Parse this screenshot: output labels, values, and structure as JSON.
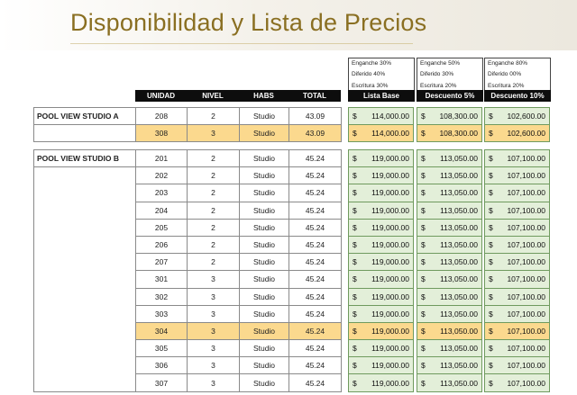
{
  "title": "Disponibilidad y Lista de Precios",
  "schemes": [
    {
      "lines": [
        "Enganche 30%",
        "Diferido 40%",
        "Escritura 30%"
      ],
      "header": "Lista Base"
    },
    {
      "lines": [
        "Enganche 50%",
        "Diferido 30%",
        "Escritura 20%"
      ],
      "header": "Descuento 5%"
    },
    {
      "lines": [
        "Enganche 80%",
        "Diferido 00%",
        "Escritura 20%"
      ],
      "header": "Descuento 10%"
    }
  ],
  "columns": [
    "UNIDAD",
    "NIVEL",
    "HABS",
    "TOTAL"
  ],
  "currency": "$",
  "colors": {
    "highlight": "#fbd98e",
    "price_cell": "#e3efd9",
    "title": "#8a6f22",
    "header_bg": "#0d0d0d"
  },
  "groups": [
    {
      "name": "POOL VIEW STUDIO A",
      "rows": [
        {
          "unidad": "208",
          "nivel": "2",
          "habs": "Studio",
          "total": "43.09",
          "prices": [
            "114,000.00",
            "108,300.00",
            "102,600.00"
          ],
          "highlight": false
        },
        {
          "unidad": "308",
          "nivel": "3",
          "habs": "Studio",
          "total": "43.09",
          "prices": [
            "114,000.00",
            "108,300.00",
            "102,600.00"
          ],
          "highlight": true
        }
      ]
    },
    {
      "name": "POOL VIEW STUDIO B",
      "rows": [
        {
          "unidad": "201",
          "nivel": "2",
          "habs": "Studio",
          "total": "45.24",
          "prices": [
            "119,000.00",
            "113,050.00",
            "107,100.00"
          ],
          "highlight": false
        },
        {
          "unidad": "202",
          "nivel": "2",
          "habs": "Studio",
          "total": "45.24",
          "prices": [
            "119,000.00",
            "113,050.00",
            "107,100.00"
          ],
          "highlight": false
        },
        {
          "unidad": "203",
          "nivel": "2",
          "habs": "Studio",
          "total": "45.24",
          "prices": [
            "119,000.00",
            "113,050.00",
            "107,100.00"
          ],
          "highlight": false
        },
        {
          "unidad": "204",
          "nivel": "2",
          "habs": "Studio",
          "total": "45.24",
          "prices": [
            "119,000.00",
            "113,050.00",
            "107,100.00"
          ],
          "highlight": false
        },
        {
          "unidad": "205",
          "nivel": "2",
          "habs": "Studio",
          "total": "45.24",
          "prices": [
            "119,000.00",
            "113,050.00",
            "107,100.00"
          ],
          "highlight": false
        },
        {
          "unidad": "206",
          "nivel": "2",
          "habs": "Studio",
          "total": "45.24",
          "prices": [
            "119,000.00",
            "113,050.00",
            "107,100.00"
          ],
          "highlight": false
        },
        {
          "unidad": "207",
          "nivel": "2",
          "habs": "Studio",
          "total": "45.24",
          "prices": [
            "119,000.00",
            "113,050.00",
            "107,100.00"
          ],
          "highlight": false
        },
        {
          "unidad": "301",
          "nivel": "3",
          "habs": "Studio",
          "total": "45.24",
          "prices": [
            "119,000.00",
            "113,050.00",
            "107,100.00"
          ],
          "highlight": false
        },
        {
          "unidad": "302",
          "nivel": "3",
          "habs": "Studio",
          "total": "45.24",
          "prices": [
            "119,000.00",
            "113,050.00",
            "107,100.00"
          ],
          "highlight": false
        },
        {
          "unidad": "303",
          "nivel": "3",
          "habs": "Studio",
          "total": "45.24",
          "prices": [
            "119,000.00",
            "113,050.00",
            "107,100.00"
          ],
          "highlight": false
        },
        {
          "unidad": "304",
          "nivel": "3",
          "habs": "Studio",
          "total": "45.24",
          "prices": [
            "119,000.00",
            "113,050.00",
            "107,100.00"
          ],
          "highlight": true
        },
        {
          "unidad": "305",
          "nivel": "3",
          "habs": "Studio",
          "total": "45.24",
          "prices": [
            "119,000.00",
            "113,050.00",
            "107,100.00"
          ],
          "highlight": false
        },
        {
          "unidad": "306",
          "nivel": "3",
          "habs": "Studio",
          "total": "45.24",
          "prices": [
            "119,000.00",
            "113,050.00",
            "107,100.00"
          ],
          "highlight": false
        },
        {
          "unidad": "307",
          "nivel": "3",
          "habs": "Studio",
          "total": "45.24",
          "prices": [
            "119,000.00",
            "113,050.00",
            "107,100.00"
          ],
          "highlight": false
        }
      ]
    }
  ]
}
